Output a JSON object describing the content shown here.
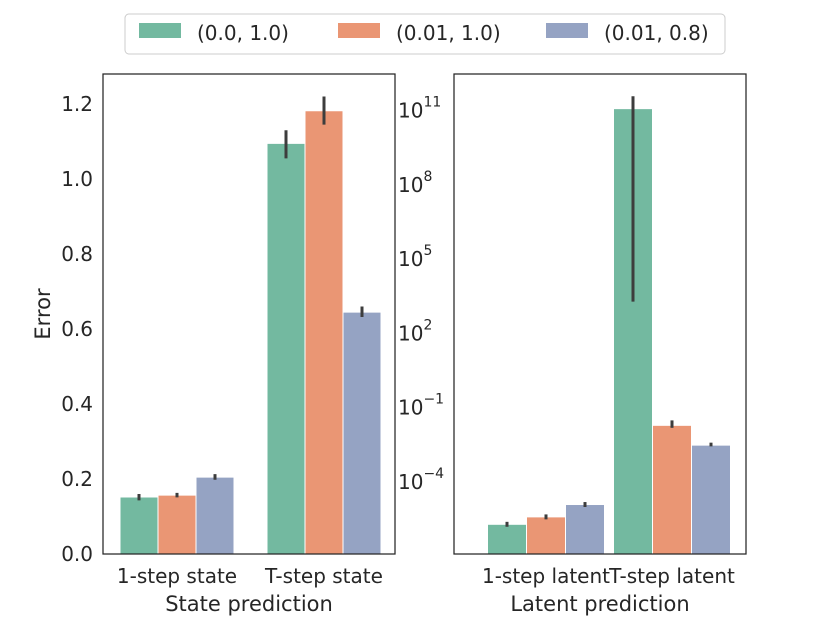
{
  "legend": {
    "placement": "top-center",
    "items": [
      {
        "label": "(0.0, 1.0)",
        "color": "#73b9a0"
      },
      {
        "label": "(0.01, 1.0)",
        "color": "#ea9674"
      },
      {
        "label": "(0.01, 0.8)",
        "color": "#95a3c3"
      }
    ]
  },
  "chart_data": [
    {
      "type": "bar",
      "title": "",
      "xlabel": "State prediction",
      "ylabel": "Error",
      "yscale": "linear",
      "ylim": [
        0,
        1.28
      ],
      "yticks": [
        0.0,
        0.2,
        0.4,
        0.6,
        0.8,
        1.0,
        1.2
      ],
      "ytick_labels": [
        "0.0",
        "0.2",
        "0.4",
        "0.6",
        "0.8",
        "1.0",
        "1.2"
      ],
      "categories": [
        "1-step state",
        "T-step state"
      ],
      "series": [
        {
          "name": "(0.0, 1.0)",
          "values": [
            0.152,
            1.095
          ],
          "err_low": [
            0.143,
            1.055
          ],
          "err_high": [
            0.16,
            1.13
          ]
        },
        {
          "name": "(0.01, 1.0)",
          "values": [
            0.157,
            1.182
          ],
          "err_low": [
            0.151,
            1.145
          ],
          "err_high": [
            0.163,
            1.22
          ]
        },
        {
          "name": "(0.01, 0.8)",
          "values": [
            0.205,
            0.645
          ],
          "err_low": [
            0.198,
            0.632
          ],
          "err_high": [
            0.213,
            0.66
          ]
        }
      ]
    },
    {
      "type": "bar",
      "title": "",
      "xlabel": "Latent prediction",
      "ylabel": "",
      "yscale": "log",
      "ylim_log10": [
        -7.2,
        12.2
      ],
      "yticks_log10": [
        -4,
        -1,
        2,
        5,
        8,
        11
      ],
      "ytick_labels": [
        {
          "base": "10",
          "exp": "−4"
        },
        {
          "base": "10",
          "exp": "−1"
        },
        {
          "base": "10",
          "exp": "2"
        },
        {
          "base": "10",
          "exp": "5"
        },
        {
          "base": "10",
          "exp": "8"
        },
        {
          "base": "10",
          "exp": "11"
        }
      ],
      "categories": [
        "1-step latent",
        "T-step latent"
      ],
      "series": [
        {
          "name": "(0.0, 1.0)",
          "values_log10": [
            -6.0,
            10.8
          ],
          "err_low_log10": [
            -6.1,
            3.0
          ],
          "err_high_log10": [
            -5.9,
            11.3
          ]
        },
        {
          "name": "(0.01, 1.0)",
          "values_log10": [
            -5.7,
            -2.0
          ],
          "err_low_log10": [
            -5.8,
            -2.1
          ],
          "err_high_log10": [
            -5.6,
            -1.8
          ]
        },
        {
          "name": "(0.01, 0.8)",
          "values_log10": [
            -5.2,
            -2.8
          ],
          "err_low_log10": [
            -5.3,
            -2.85
          ],
          "err_high_log10": [
            -5.1,
            -2.7
          ]
        }
      ]
    }
  ]
}
